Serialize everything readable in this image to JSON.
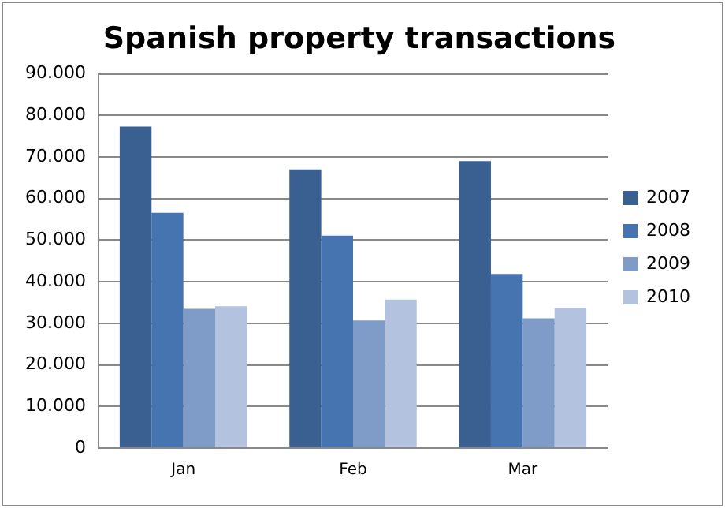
{
  "chart_data": {
    "type": "bar",
    "title": "Spanish property transactions",
    "categories": [
      "Jan",
      "Feb",
      "Mar"
    ],
    "series": [
      {
        "name": "2007",
        "color": "#3a5f91",
        "values": [
          77300,
          67000,
          69000
        ]
      },
      {
        "name": "2008",
        "color": "#4674b0",
        "values": [
          56600,
          51100,
          41900
        ]
      },
      {
        "name": "2009",
        "color": "#7f9cc8",
        "values": [
          33500,
          30700,
          31200
        ]
      },
      {
        "name": "2010",
        "color": "#b3c2de",
        "values": [
          34100,
          35700,
          33700
        ]
      }
    ],
    "ylim": [
      0,
      90000
    ],
    "yticks": [
      0,
      {
        "value": 10000,
        "label": "10.000"
      },
      {
        "value": 20000,
        "label": "20.000"
      },
      {
        "value": 30000,
        "label": "30.000"
      },
      {
        "value": 40000,
        "label": "40.000"
      },
      {
        "value": 50000,
        "label": "50.000"
      },
      {
        "value": 60000,
        "label": "60.000"
      },
      {
        "value": 70000,
        "label": "70.000"
      },
      {
        "value": 80000,
        "label": "80.000"
      },
      {
        "value": 90000,
        "label": "90.000"
      }
    ],
    "grid": "y",
    "legend": "right"
  }
}
